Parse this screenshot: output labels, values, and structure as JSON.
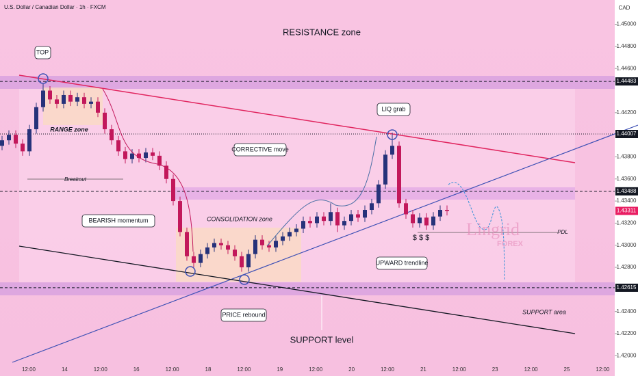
{
  "chart_data": {
    "type": "candlestick",
    "title": "U.S. Dollar / Canadian Dollar · 1h · FXCM",
    "currency": "CAD",
    "up_color": "#26327a",
    "down_color": "#c2185b",
    "open": [
      1.439,
      1.4395,
      1.44,
      1.4392,
      1.4385,
      1.4405,
      1.4425,
      1.444,
      1.4432,
      1.4428,
      1.4436,
      1.443,
      1.4434,
      1.4428,
      1.443,
      1.442,
      1.4405,
      1.4395,
      1.4385,
      1.4378,
      1.4383,
      1.4379,
      1.4384,
      1.4381,
      1.4372,
      1.436,
      1.434,
      1.4312,
      1.429,
      1.4284,
      1.4292,
      1.4298,
      1.4302,
      1.43,
      1.4296,
      1.429,
      1.428,
      1.4292,
      1.4305,
      1.43,
      1.4298,
      1.4304,
      1.4308,
      1.4312,
      1.4315,
      1.4322,
      1.432,
      1.4326,
      1.4322,
      1.433,
      1.4318,
      1.4322,
      1.4328,
      1.4325,
      1.4332,
      1.4338,
      1.4355,
      1.4382,
      1.439,
      1.4338,
      1.4328,
      1.432,
      1.4325,
      1.4318,
      1.4326,
      1.4332
    ],
    "high": [
      1.4399,
      1.4404,
      1.4404,
      1.4396,
      1.4409,
      1.4429,
      1.4446,
      1.4444,
      1.4436,
      1.444,
      1.444,
      1.4438,
      1.4438,
      1.4434,
      1.4434,
      1.4424,
      1.4409,
      1.4399,
      1.4389,
      1.4387,
      1.4387,
      1.4388,
      1.4388,
      1.4385,
      1.4376,
      1.4364,
      1.4344,
      1.4316,
      1.4294,
      1.4296,
      1.4302,
      1.4306,
      1.4306,
      1.4304,
      1.43,
      1.4294,
      1.4296,
      1.4309,
      1.4309,
      1.4304,
      1.4308,
      1.4312,
      1.4316,
      1.4319,
      1.4326,
      1.4326,
      1.433,
      1.433,
      1.4338,
      1.4334,
      1.4326,
      1.4332,
      1.4332,
      1.4336,
      1.4342,
      1.4359,
      1.4386,
      1.4402,
      1.4394,
      1.4342,
      1.4332,
      1.4329,
      1.4329,
      1.433,
      1.4336,
      1.4336
    ],
    "low": [
      1.4386,
      1.4391,
      1.4388,
      1.4381,
      1.4381,
      1.4401,
      1.4421,
      1.4428,
      1.4424,
      1.4424,
      1.4426,
      1.4426,
      1.4424,
      1.4424,
      1.4416,
      1.4401,
      1.4391,
      1.4381,
      1.4374,
      1.4374,
      1.4375,
      1.4375,
      1.4377,
      1.4368,
      1.4356,
      1.4336,
      1.4308,
      1.4286,
      1.428,
      1.428,
      1.4288,
      1.4294,
      1.4296,
      1.4292,
      1.4286,
      1.4276,
      1.4276,
      1.4288,
      1.4296,
      1.4294,
      1.4294,
      1.43,
      1.4304,
      1.4308,
      1.4311,
      1.4316,
      1.4316,
      1.4318,
      1.4318,
      1.4312,
      1.4314,
      1.4318,
      1.4321,
      1.4321,
      1.4328,
      1.4334,
      1.4351,
      1.4378,
      1.4334,
      1.4324,
      1.4316,
      1.4316,
      1.4314,
      1.4314,
      1.4322,
      1.4327
    ],
    "close": [
      1.4395,
      1.44,
      1.4392,
      1.4385,
      1.4405,
      1.4425,
      1.444,
      1.4432,
      1.4428,
      1.4436,
      1.443,
      1.4434,
      1.4428,
      1.443,
      1.442,
      1.4405,
      1.4395,
      1.4385,
      1.4378,
      1.4383,
      1.4379,
      1.4384,
      1.4381,
      1.4372,
      1.436,
      1.434,
      1.4312,
      1.429,
      1.4284,
      1.4292,
      1.4298,
      1.4302,
      1.43,
      1.4296,
      1.429,
      1.428,
      1.4292,
      1.4305,
      1.43,
      1.4298,
      1.4304,
      1.4308,
      1.4312,
      1.4315,
      1.4322,
      1.432,
      1.4326,
      1.4322,
      1.433,
      1.4318,
      1.4322,
      1.4328,
      1.4325,
      1.4332,
      1.4338,
      1.4355,
      1.4382,
      1.439,
      1.4338,
      1.4328,
      1.432,
      1.4325,
      1.4318,
      1.4326,
      1.4332,
      1.4331
    ],
    "x_labels": [
      "12:00",
      "14",
      "12:00",
      "16",
      "12:00",
      "18",
      "12:00",
      "19",
      "12:00",
      "20",
      "12:00",
      "21",
      "12:00",
      "23",
      "12:00",
      "25",
      "12:00"
    ],
    "ylim": [
      1.4194,
      1.4522
    ],
    "yticks": [
      {
        "value": 1.45,
        "label": "1.45000"
      },
      {
        "value": 1.448,
        "label": "1.44800"
      },
      {
        "value": 1.446,
        "label": "1.44600"
      },
      {
        "value": 1.442,
        "label": "1.44200"
      },
      {
        "value": 1.438,
        "label": "1.43800"
      },
      {
        "value": 1.436,
        "label": "1.43600"
      },
      {
        "value": 1.434,
        "label": "1.43400"
      },
      {
        "value": 1.432,
        "label": "1.43200"
      },
      {
        "value": 1.43,
        "label": "1.43000"
      },
      {
        "value": 1.428,
        "label": "1.42800"
      },
      {
        "value": 1.424,
        "label": "1.42400"
      },
      {
        "value": 1.422,
        "label": "1.42200"
      },
      {
        "value": 1.42,
        "label": "1.42000"
      }
    ],
    "levels": [
      1.44483,
      1.44007,
      1.43488,
      1.42615
    ],
    "last_price": 1.43311,
    "annotations": {
      "resistance": "RESISTANCE zone",
      "top": "TOP",
      "range": "RANGE zone",
      "breakout": "Breakout",
      "bearish": "BEARISH momentum",
      "consolidation": "CONSOLIDATION zone",
      "corrective": "CORRECTIVE move",
      "liq": "LIQ grab",
      "pdl": "PDL",
      "dollars": "$ $ $",
      "upward": "UPWARD trendline",
      "rebound": "PRICE rebound",
      "support_area": "SUPPORT area",
      "support_level": "SUPPORT level",
      "brand": "Lingrid",
      "brand_sub": "FOREX"
    }
  }
}
